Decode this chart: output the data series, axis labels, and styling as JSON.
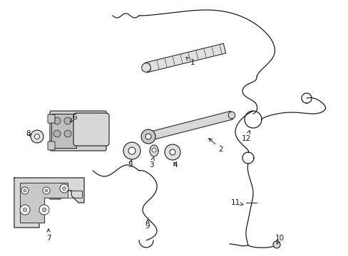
{
  "background_color": "#ffffff",
  "line_color": "#1a1a1a",
  "line_width": 0.9,
  "fig_width": 4.89,
  "fig_height": 3.6,
  "dpi": 100,
  "xlim": [
    0,
    489
  ],
  "ylim": [
    0,
    360
  ]
}
